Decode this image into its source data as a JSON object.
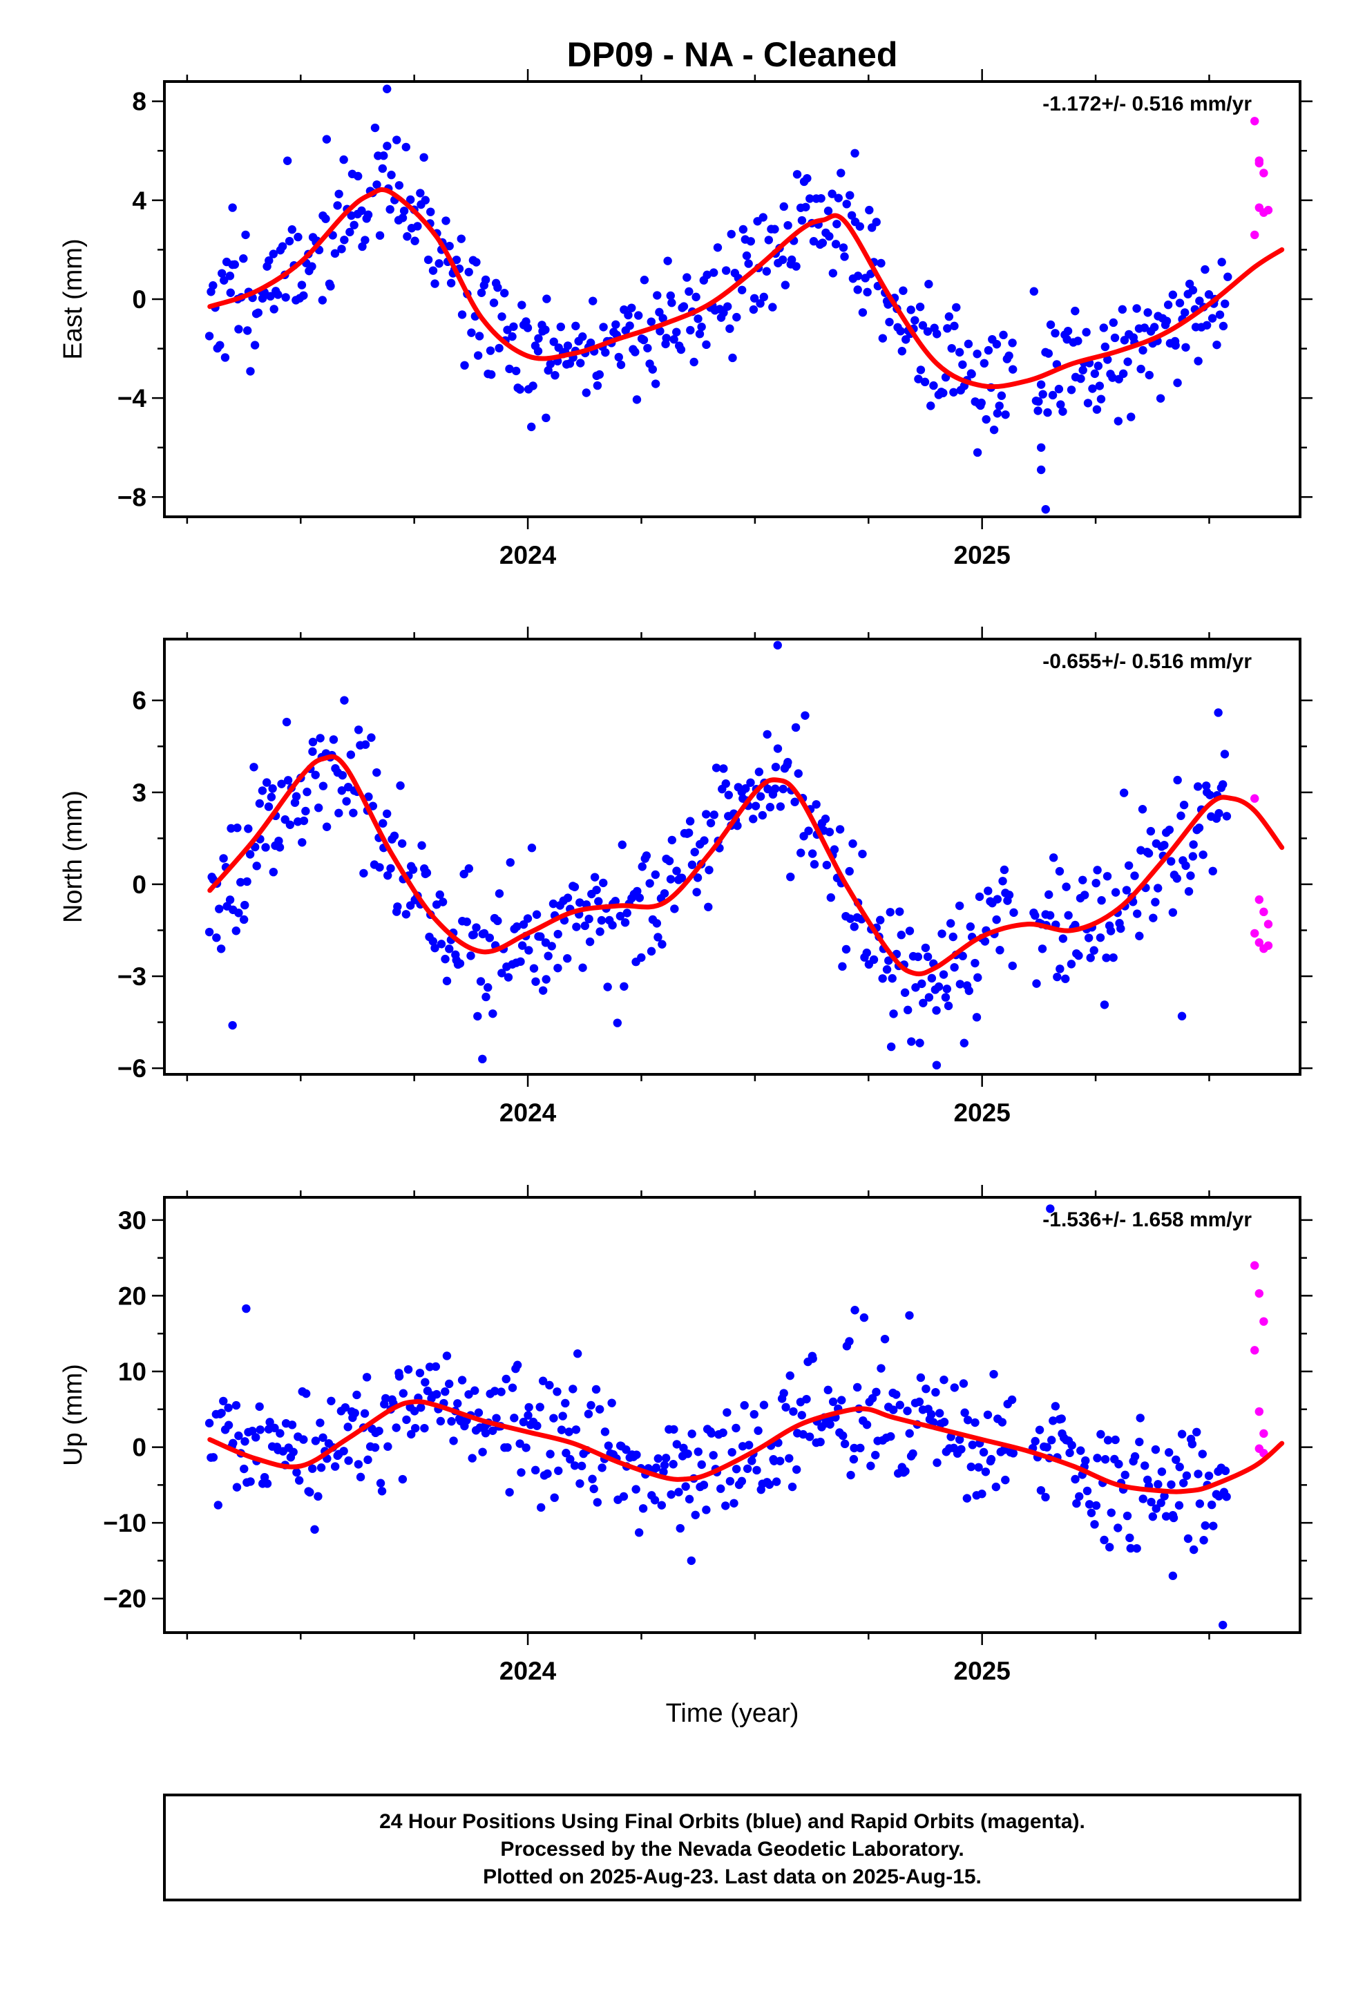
{
  "title": "DP09  - NA - Cleaned",
  "colors": {
    "final": "#0000ff",
    "rapid": "#ff00ff",
    "fit": "#ff0000"
  },
  "chart_data": [
    {
      "type": "scatter",
      "ylabel": "East (mm)",
      "rate": "-1.172+/- 0.516 mm/yr",
      "xlim": [
        2023.2,
        2025.7
      ],
      "ylim": [
        -8.8,
        8.8
      ],
      "yticks": [
        -8,
        -4,
        0,
        4,
        8
      ],
      "xticks": [
        2024,
        2025
      ],
      "fit": {
        "x": [
          2023.3,
          2023.4,
          2023.5,
          2023.6,
          2023.65,
          2023.7,
          2023.8,
          2023.9,
          2024.0,
          2024.1,
          2024.2,
          2024.3,
          2024.4,
          2024.5,
          2024.6,
          2024.65,
          2024.7,
          2024.8,
          2024.9,
          2025.0,
          2025.1,
          2025.2,
          2025.3,
          2025.4,
          2025.5,
          2025.6,
          2025.66
        ],
        "y": [
          -0.3,
          0.3,
          1.5,
          3.5,
          4.2,
          4.3,
          2.5,
          -0.8,
          -2.3,
          -2.2,
          -1.6,
          -1.0,
          -0.2,
          1.2,
          2.8,
          3.2,
          3.1,
          0.0,
          -2.6,
          -3.5,
          -3.3,
          -2.6,
          -2.1,
          -1.4,
          -0.2,
          1.3,
          2.0
        ]
      },
      "final_points": {
        "start": 2023.3,
        "end": 2025.54,
        "n": 520,
        "noise": 1.25,
        "seed": 11,
        "outliers": [
          [
            2023.35,
            3.7
          ],
          [
            2023.69,
            8.5
          ],
          [
            2025.14,
            -8.5
          ],
          [
            2025.13,
            -6.9
          ],
          [
            2024.72,
            5.9
          ],
          [
            2024.99,
            -6.2
          ],
          [
            2024.04,
            -4.8
          ],
          [
            2025.13,
            -6.0
          ]
        ]
      },
      "rapid_points": {
        "x": [
          2025.6,
          2025.61,
          2025.62,
          2025.63,
          2025.6,
          2025.61,
          2025.61,
          2025.62
        ],
        "y": [
          7.2,
          5.5,
          5.1,
          3.6,
          2.6,
          3.7,
          5.6,
          3.5
        ]
      }
    },
    {
      "type": "scatter",
      "ylabel": "North (mm)",
      "rate": "-0.655+/- 0.516 mm/yr",
      "xlim": [
        2023.2,
        2025.7
      ],
      "ylim": [
        -6.2,
        8.0
      ],
      "yticks": [
        -6,
        -3,
        0,
        3,
        6
      ],
      "xticks": [
        2024,
        2025
      ],
      "fit": {
        "x": [
          2023.3,
          2023.4,
          2023.5,
          2023.55,
          2023.6,
          2023.7,
          2023.8,
          2023.9,
          2024.0,
          2024.1,
          2024.2,
          2024.3,
          2024.4,
          2024.5,
          2024.55,
          2024.6,
          2024.7,
          2024.8,
          2024.85,
          2024.9,
          2025.0,
          2025.1,
          2025.2,
          2025.3,
          2025.4,
          2025.5,
          2025.55,
          2025.6,
          2025.66
        ],
        "y": [
          -0.2,
          1.5,
          3.5,
          4.1,
          3.8,
          1.0,
          -1.2,
          -2.2,
          -1.6,
          -0.9,
          -0.7,
          -0.6,
          1.0,
          3.0,
          3.4,
          2.8,
          0.0,
          -2.3,
          -2.9,
          -2.7,
          -1.7,
          -1.3,
          -1.5,
          -0.8,
          0.8,
          2.6,
          2.8,
          2.4,
          1.2
        ]
      },
      "final_points": {
        "start": 2023.3,
        "end": 2025.54,
        "n": 520,
        "noise": 1.05,
        "seed": 23,
        "outliers": [
          [
            2023.35,
            -4.6
          ],
          [
            2023.9,
            -5.7
          ],
          [
            2024.55,
            7.8
          ],
          [
            2024.8,
            -5.3
          ],
          [
            2024.9,
            -5.9
          ],
          [
            2023.44,
            0.4
          ],
          [
            2025.44,
            -4.3
          ],
          [
            2025.52,
            5.6
          ]
        ]
      },
      "rapid_points": {
        "x": [
          2025.6,
          2025.61,
          2025.62,
          2025.63,
          2025.6,
          2025.61,
          2025.62,
          2025.63
        ],
        "y": [
          2.8,
          -0.5,
          -0.9,
          -1.3,
          -1.6,
          -1.9,
          -2.1,
          -2.0
        ]
      }
    },
    {
      "type": "scatter",
      "ylabel": "Up (mm)",
      "xlabel": "Time (year)",
      "rate": "-1.536+/- 1.658 mm/yr",
      "xlim": [
        2023.2,
        2025.7
      ],
      "ylim": [
        -24.5,
        33.0
      ],
      "yticks": [
        -20,
        -10,
        0,
        10,
        20,
        30
      ],
      "xticks": [
        2024,
        2025
      ],
      "fit": {
        "x": [
          2023.3,
          2023.4,
          2023.5,
          2023.6,
          2023.7,
          2023.75,
          2023.8,
          2023.9,
          2024.0,
          2024.1,
          2024.2,
          2024.3,
          2024.35,
          2024.4,
          2024.5,
          2024.6,
          2024.7,
          2024.75,
          2024.8,
          2024.9,
          2025.0,
          2025.1,
          2025.2,
          2025.3,
          2025.4,
          2025.45,
          2025.5,
          2025.6,
          2025.66
        ],
        "y": [
          1.0,
          -1.5,
          -2.5,
          1.0,
          5.0,
          6.0,
          5.5,
          3.5,
          2.0,
          0.5,
          -2.0,
          -4.0,
          -4.2,
          -3.5,
          -0.5,
          3.0,
          4.8,
          5.0,
          4.0,
          2.5,
          1.0,
          -0.5,
          -2.5,
          -5.0,
          -5.8,
          -5.8,
          -5.2,
          -2.5,
          0.5
        ]
      },
      "final_points": {
        "start": 2023.3,
        "end": 2025.54,
        "n": 520,
        "noise": 4.0,
        "seed": 37,
        "outliers": [
          [
            2023.38,
            18.3
          ],
          [
            2024.72,
            18.1
          ],
          [
            2024.84,
            17.4
          ],
          [
            2025.15,
            31.5
          ],
          [
            2025.53,
            -23.5
          ],
          [
            2024.36,
            -15.0
          ],
          [
            2025.42,
            -17.0
          ]
        ]
      },
      "rapid_points": {
        "x": [
          2025.6,
          2025.61,
          2025.62,
          2025.6,
          2025.61,
          2025.62,
          2025.61,
          2025.62
        ],
        "y": [
          24.0,
          20.3,
          16.6,
          12.8,
          4.7,
          1.8,
          -0.2,
          -0.8
        ]
      }
    }
  ],
  "footer": {
    "line1": "24 Hour Positions Using Final Orbits (blue) and Rapid Orbits (magenta).",
    "line2": "Processed by the Nevada Geodetic Laboratory.",
    "line3": "Plotted on 2025-Aug-23. Last data on 2025-Aug-15."
  }
}
